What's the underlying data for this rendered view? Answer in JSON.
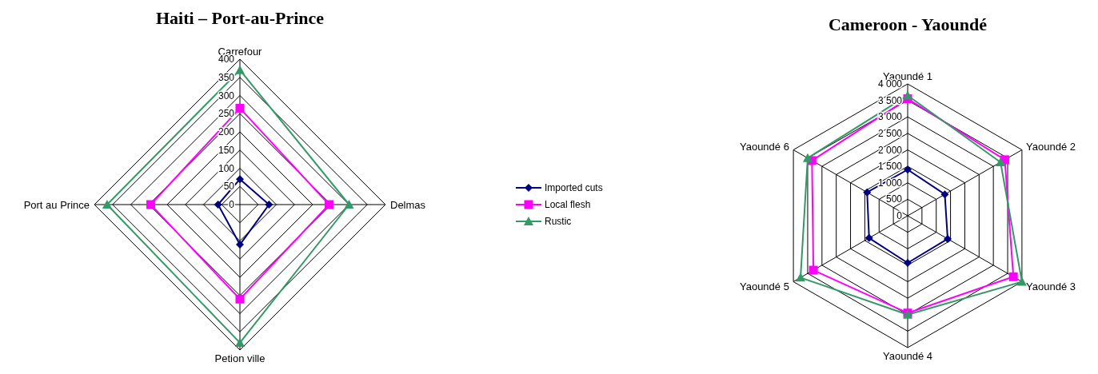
{
  "chart_data": [
    {
      "type": "radar",
      "title": "Haiti – Port-au-Prince",
      "categories": [
        "Carrefour",
        "Delmas",
        "Petion ville",
        "Port au Prince"
      ],
      "series": [
        {
          "name": "Imported cuts",
          "color": "#000080",
          "marker": "diamond",
          "values": [
            70,
            80,
            110,
            60
          ]
        },
        {
          "name": "Local flesh",
          "color": "#ff00ff",
          "marker": "square",
          "values": [
            265,
            245,
            260,
            245
          ]
        },
        {
          "name": "Rustic",
          "color": "#339966",
          "marker": "triangle",
          "values": [
            370,
            300,
            380,
            365
          ]
        }
      ],
      "ylim": [
        0,
        400
      ],
      "yticks": [
        0,
        50,
        100,
        150,
        200,
        250,
        300,
        350,
        400
      ],
      "grid": true,
      "legend": "right"
    },
    {
      "type": "radar",
      "title": "Cameroon - Yaoundé",
      "categories": [
        "Yaoundé 1",
        "Yaoundé 2",
        "Yaoundé 3",
        "Yaoundé 4",
        "Yaoundé 5",
        "Yaoundé 6"
      ],
      "series": [
        {
          "color": "#000080",
          "marker": "diamond",
          "values": [
            1400,
            1300,
            1400,
            1430,
            1350,
            1420
          ]
        },
        {
          "color": "#ff00ff",
          "marker": "square",
          "values": [
            3550,
            3400,
            3700,
            2950,
            3300,
            3350
          ]
        },
        {
          "color": "#339966",
          "marker": "triangle",
          "values": [
            3650,
            3250,
            4000,
            3000,
            3750,
            3500
          ]
        }
      ],
      "ylim": [
        0,
        4000
      ],
      "yticks": [
        0,
        {
          "value": 500,
          "label": "500"
        },
        {
          "value": 1000,
          "label": "1 000"
        },
        {
          "value": 1500,
          "label": "1 500"
        },
        {
          "value": 2000,
          "label": "2 000"
        },
        {
          "value": 2500,
          "label": "2 500"
        },
        {
          "value": 3000,
          "label": "3 000"
        },
        {
          "value": 3500,
          "label": "3 500"
        },
        {
          "value": 4000,
          "label": "4 000"
        }
      ],
      "grid": true
    }
  ]
}
